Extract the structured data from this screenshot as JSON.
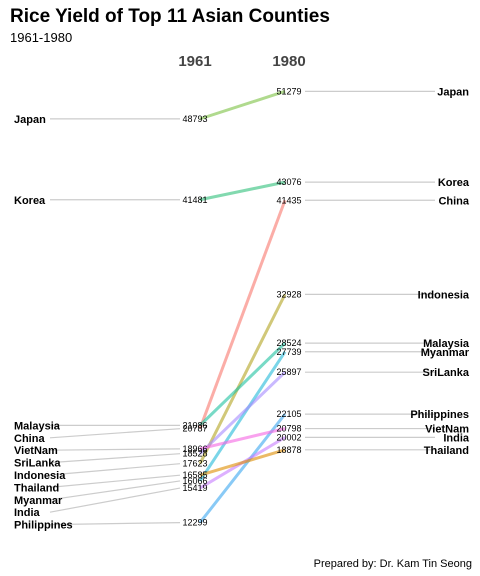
{
  "title": "Rice Yield of Top 11 Asian Counties",
  "subtitle": "1961-1980",
  "caption": "Prepared by: Dr. Kam Tin Seong",
  "chart_data": {
    "type": "slope",
    "x": [
      "1961",
      "1980"
    ],
    "series": [
      {
        "name": "Japan",
        "values": [
          48793,
          51279
        ],
        "color": "#7cc242"
      },
      {
        "name": "Korea",
        "values": [
          41481,
          43076
        ],
        "color": "#2fc07a"
      },
      {
        "name": "China",
        "values": [
          20787,
          41435
        ],
        "color": "#f8766d"
      },
      {
        "name": "Indonesia",
        "values": [
          17623,
          32928
        ],
        "color": "#b3a41f"
      },
      {
        "name": "Malaysia",
        "values": [
          21086,
          28524
        ],
        "color": "#1ec1a0"
      },
      {
        "name": "Myanmar",
        "values": [
          16066,
          27739
        ],
        "color": "#21b9d8"
      },
      {
        "name": "SriLanka",
        "values": [
          18528,
          25897
        ],
        "color": "#a58aff"
      },
      {
        "name": "Philippines",
        "values": [
          12299,
          22105
        ],
        "color": "#3ba6f0"
      },
      {
        "name": "VietNam",
        "values": [
          18966,
          20798
        ],
        "color": "#f564e3"
      },
      {
        "name": "India",
        "values": [
          15419,
          20002
        ],
        "color": "#c77cff"
      },
      {
        "name": "Thailand",
        "values": [
          16585,
          18878
        ],
        "color": "#de8c00"
      }
    ]
  }
}
